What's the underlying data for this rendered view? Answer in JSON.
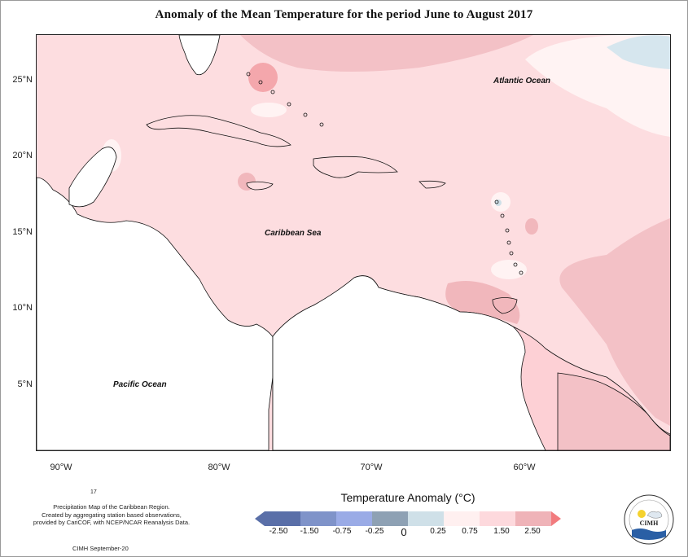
{
  "title": "Anomaly of the Mean Temperature for the period June to August 2017",
  "latitude_labels": [
    "25°N",
    "20°N",
    "15°N",
    "10°N",
    "5°N"
  ],
  "longitude_labels": [
    "90°W",
    "80°W",
    "70°W",
    "60°W"
  ],
  "ocean_labels": {
    "atlantic": "Atlantic Ocean",
    "caribbean": "Caribbean Sea",
    "pacific": "Pacific Ocean"
  },
  "footer": {
    "page_number": "17",
    "description_line1": "Precipitation Map of the Caribbean Region.",
    "description_line2": "Created by aggregating station based observations,",
    "description_line3": "provided by CariCOF, with NCEP/NCAR Reanalysis Data.",
    "credit": "CIMH September-20"
  },
  "legend": {
    "title": "Temperature Anomaly (°C)",
    "ticks": [
      "-2.50",
      "-1.50",
      "-0.75",
      "-0.25",
      "0",
      "0.25",
      "0.75",
      "1.50",
      "2.50"
    ],
    "colors": [
      "#5a6fa8",
      "#7f93c9",
      "#9aabe6",
      "#8ea1b4",
      "#cfe0e8",
      "#fff0f0",
      "#fdd9dd",
      "#efb3b8",
      "#f27b7e"
    ]
  },
  "logo": {
    "text": "CIMH",
    "icon": "sun-cloud-wave-icon"
  }
}
